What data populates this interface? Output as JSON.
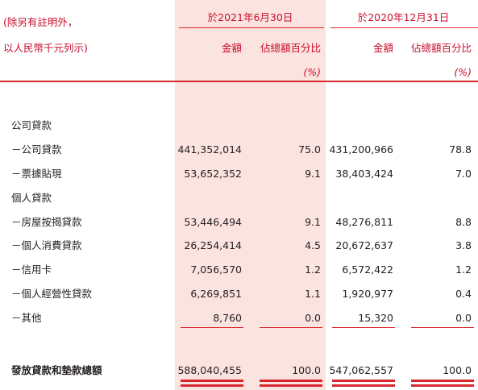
{
  "header": {
    "note_line1": "(除另有註明外，",
    "note_line2": "以人民幣千元列示)",
    "period1": "於2021年6月30日",
    "period2": "於2020年12月31日",
    "col_amount": "金額",
    "col_pct": "佔總額百分比",
    "pct_unit": "(%)"
  },
  "rows": [
    {
      "label": "公司貸款",
      "type": "section"
    },
    {
      "label": "－公司貸款",
      "amt1": "441,352,014",
      "pct1": "75.0",
      "amt2": "431,200,966",
      "pct2": "78.8"
    },
    {
      "label": "－票據貼現",
      "amt1": "53,652,352",
      "pct1": "9.1",
      "amt2": "38,403,424",
      "pct2": "7.0"
    },
    {
      "label": "個人貸款",
      "type": "section"
    },
    {
      "label": "－房屋按揭貸款",
      "amt1": "53,446,494",
      "pct1": "9.1",
      "amt2": "48,276,811",
      "pct2": "8.8"
    },
    {
      "label": "－個人消費貸款",
      "amt1": "26,254,414",
      "pct1": "4.5",
      "amt2": "20,672,637",
      "pct2": "3.8"
    },
    {
      "label": "－信用卡",
      "amt1": "7,056,570",
      "pct1": "1.2",
      "amt2": "6,572,422",
      "pct2": "1.2"
    },
    {
      "label": "－個人經營性貸款",
      "amt1": "6,269,851",
      "pct1": "1.1",
      "amt2": "1,920,977",
      "pct2": "0.4"
    },
    {
      "label": "－其他",
      "amt1": "8,760",
      "pct1": "0.0",
      "amt2": "15,320",
      "pct2": "0.0"
    }
  ],
  "total": {
    "label": "發放貸款和墊款總額",
    "amt1": "588,040,455",
    "pct1": "100.0",
    "amt2": "547,062,557",
    "pct2": "100.0"
  },
  "colors": {
    "accent_red": "#d9272e",
    "shade": "#fbe3e0",
    "text": "#231f20"
  }
}
